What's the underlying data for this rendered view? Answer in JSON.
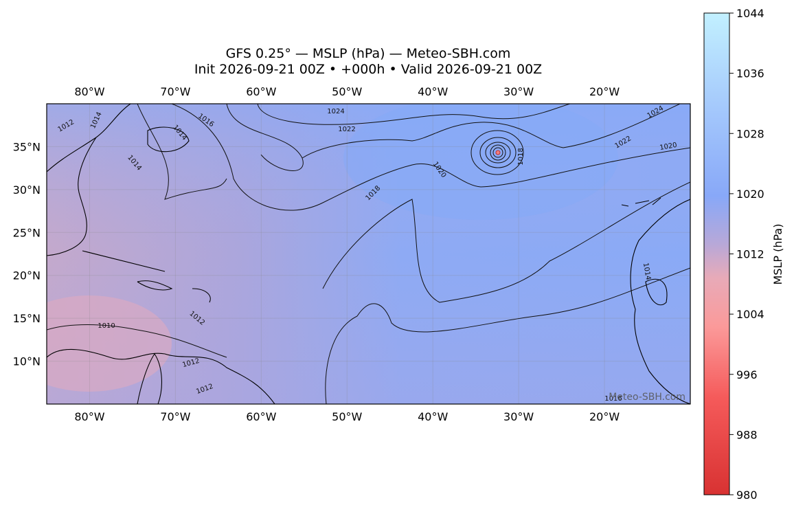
{
  "title": "GFS 0.25° — MSLP (hPa) — Meteo-SBH.com",
  "subtitle": "Init 2026-09-21 00Z • +000h • Valid 2026-09-21 00Z",
  "map": {
    "xlim": [
      -85,
      -10
    ],
    "ylim": [
      5,
      40
    ],
    "lon_ticks": [
      {
        "value": -80,
        "label": "80°W"
      },
      {
        "value": -70,
        "label": "70°W"
      },
      {
        "value": -60,
        "label": "60°W"
      },
      {
        "value": -50,
        "label": "50°W"
      },
      {
        "value": -40,
        "label": "40°W"
      },
      {
        "value": -30,
        "label": "30°W"
      },
      {
        "value": -20,
        "label": "20°W"
      }
    ],
    "lat_ticks": [
      {
        "value": 35,
        "label": "35°N"
      },
      {
        "value": 30,
        "label": "30°N"
      },
      {
        "value": 25,
        "label": "25°N"
      },
      {
        "value": 20,
        "label": "20°N"
      },
      {
        "value": 15,
        "label": "15°N"
      },
      {
        "value": 10,
        "label": "10°N"
      }
    ],
    "contour_labels": [
      "1024",
      "1022",
      "1016",
      "1014",
      "1014",
      "1012",
      "1014",
      "1020",
      "1018",
      "1018",
      "1024",
      "1022",
      "1020",
      "1012",
      "1010",
      "1012",
      "1012",
      "1016",
      "1014"
    ],
    "watermark": "Meteo-SBH.com"
  },
  "colorbar": {
    "label": "MSLP (hPa)",
    "lim": [
      980,
      1044
    ],
    "ticks": [
      980,
      988,
      996,
      1004,
      1012,
      1020,
      1028,
      1036,
      1044
    ]
  }
}
